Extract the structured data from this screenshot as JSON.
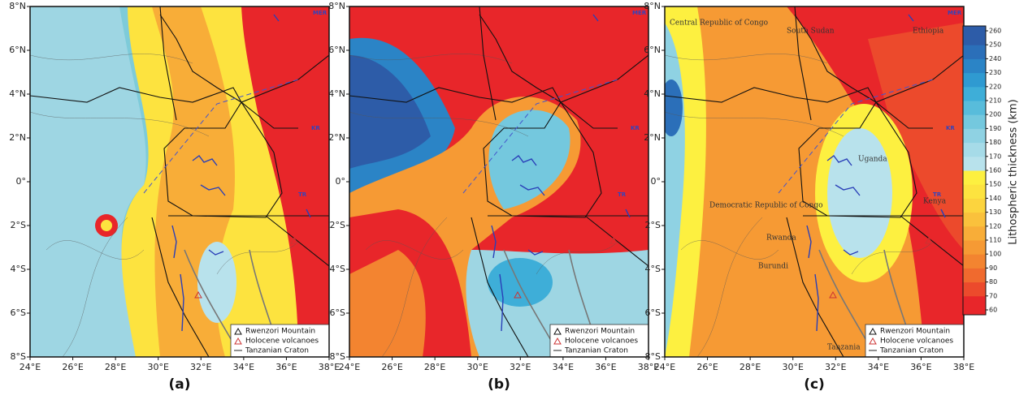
{
  "panels": [
    {
      "label": "(a)"
    },
    {
      "label": "(b)"
    },
    {
      "label": "(c)"
    }
  ],
  "x_ticks": [
    "24°E",
    "26°E",
    "28°E",
    "30°E",
    "32°E",
    "34°E",
    "36°E",
    "38°E"
  ],
  "y_ticks": [
    "8°N",
    "6°N",
    "4°N",
    "2°N",
    "0°",
    "2°S",
    "4°S",
    "6°S",
    "8°S"
  ],
  "legend": [
    "Rwenzori Mountain",
    "Holocene volcanoes",
    "Tanzanian Craton"
  ],
  "region_labels": [
    "MER",
    "KR",
    "TR"
  ],
  "country_labels": [
    "Central Republic of Congo",
    "South Sudan",
    "Ethiopia",
    "Uganda",
    "Kenya",
    "Democratic Republic of Congo",
    "Rwanda",
    "Burundi",
    "Tanzania"
  ],
  "colorbar": {
    "label": "Lithospheric thickness (km)",
    "ticks": [
      60,
      70,
      80,
      90,
      100,
      110,
      120,
      130,
      140,
      150,
      160,
      170,
      180,
      190,
      200,
      210,
      220,
      230,
      240,
      250,
      260
    ],
    "colors": [
      "#e8262a",
      "#ec4a2c",
      "#f06a2e",
      "#f38430",
      "#f69a34",
      "#f8ad38",
      "#fac13c",
      "#fcd43e",
      "#fde33f",
      "#fdf040",
      "#b8e2ec",
      "#a6dbe8",
      "#8fd2e3",
      "#74c8de",
      "#58bcdb",
      "#3eaed8",
      "#2f9ad1",
      "#2b84c6",
      "#2b6fb9",
      "#2d5ca8"
    ]
  }
}
